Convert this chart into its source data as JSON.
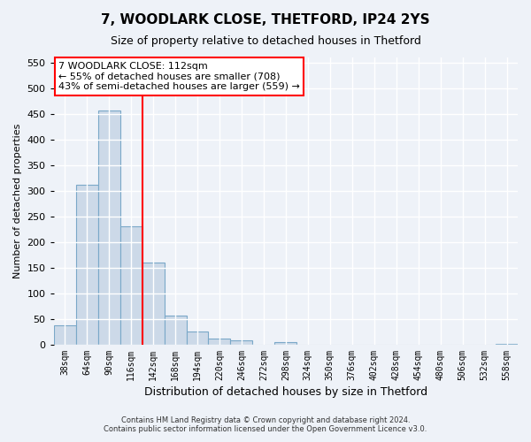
{
  "title": "7, WOODLARK CLOSE, THETFORD, IP24 2YS",
  "subtitle": "Size of property relative to detached houses in Thetford",
  "xlabel": "Distribution of detached houses by size in Thetford",
  "ylabel": "Number of detached properties",
  "bin_labels": [
    "38sqm",
    "64sqm",
    "90sqm",
    "116sqm",
    "142sqm",
    "168sqm",
    "194sqm",
    "220sqm",
    "246sqm",
    "272sqm",
    "298sqm",
    "324sqm",
    "350sqm",
    "376sqm",
    "402sqm",
    "428sqm",
    "454sqm",
    "480sqm",
    "506sqm",
    "532sqm",
    "558sqm"
  ],
  "bar_heights": [
    38,
    311,
    456,
    230,
    160,
    57,
    26,
    12,
    8,
    0,
    5,
    0,
    0,
    0,
    0,
    0,
    0,
    0,
    0,
    0,
    2
  ],
  "bar_color": "#ccd9e8",
  "bar_edge_color": "#7aa8c8",
  "vline_color": "red",
  "vline_index": 3,
  "annotation_title": "7 WOODLARK CLOSE: 112sqm",
  "annotation_line1": "← 55% of detached houses are smaller (708)",
  "annotation_line2": "43% of semi-detached houses are larger (559) →",
  "annotation_box_color": "white",
  "annotation_box_edge_color": "red",
  "yticks": [
    0,
    50,
    100,
    150,
    200,
    250,
    300,
    350,
    400,
    450,
    500,
    550
  ],
  "ylim": [
    0,
    560
  ],
  "footer1": "Contains HM Land Registry data © Crown copyright and database right 2024.",
  "footer2": "Contains public sector information licensed under the Open Government Licence v3.0.",
  "background_color": "#eef2f8",
  "grid_color": "#ffffff"
}
